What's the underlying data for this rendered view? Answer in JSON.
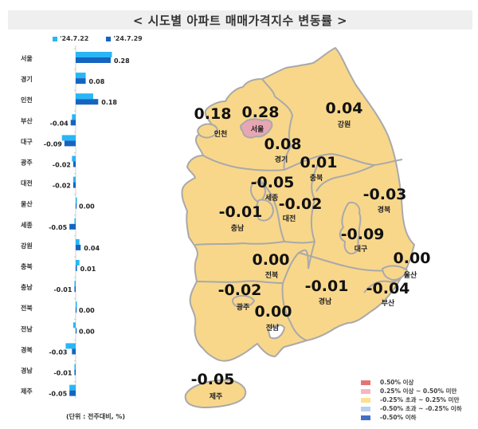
{
  "title": "< 시도별 아파트 매매가격지수 변동률 >",
  "unit_note": "(단위 : 전주대비, %)",
  "colors": {
    "prev_week": "#29b6f6",
    "this_week": "#1565c0",
    "map_base": "#f8d78b",
    "map_border": "#a9a9a9",
    "seoul_fill": "#e8a6b4"
  },
  "chart_data": {
    "type": "bar",
    "orientation": "horizontal",
    "title": "시도별 아파트 매매가격지수 변동률",
    "xlabel": "",
    "ylabel": "",
    "unit": "전주대비, %",
    "categories": [
      "서울",
      "경기",
      "인천",
      "부산",
      "대구",
      "광주",
      "대전",
      "울산",
      "세종",
      "강원",
      "충북",
      "충남",
      "전북",
      "전남",
      "경북",
      "경남",
      "제주"
    ],
    "series": [
      {
        "name": "'24.7.22",
        "color": "#29b6f6",
        "values": [
          0.29,
          0.08,
          0.14,
          -0.03,
          -0.11,
          -0.03,
          -0.02,
          0.01,
          -0.01,
          0.03,
          0.03,
          -0.01,
          0.01,
          -0.02,
          -0.08,
          -0.01,
          -0.05
        ]
      },
      {
        "name": "'24.7.29",
        "color": "#1565c0",
        "values": [
          0.28,
          0.08,
          0.18,
          -0.04,
          -0.09,
          -0.02,
          -0.02,
          0.0,
          -0.05,
          0.04,
          0.01,
          -0.01,
          0.0,
          0.0,
          -0.03,
          -0.01,
          -0.05
        ]
      }
    ],
    "data_labels": [
      "0.28",
      "0.08",
      "0.18",
      "-0.04",
      "-0.09",
      "-0.02",
      "-0.02",
      "0.00",
      "-0.05",
      "0.04",
      "0.01",
      "-0.01",
      "0.00",
      "0.00",
      "-0.03",
      "-0.01",
      "-0.05"
    ],
    "legend_position": "top",
    "grid": false
  },
  "legend_top": [
    {
      "label": "'24.7.22",
      "color": "#29b6f6"
    },
    {
      "label": "'24.7.29",
      "color": "#1565c0"
    }
  ],
  "map": {
    "regions": [
      {
        "name": "인천",
        "value": "0.18"
      },
      {
        "name": "서울",
        "value": "0.28"
      },
      {
        "name": "경기",
        "value": "0.08"
      },
      {
        "name": "강원",
        "value": "0.04"
      },
      {
        "name": "충북",
        "value": "0.01"
      },
      {
        "name": "세종",
        "value": "-0.05"
      },
      {
        "name": "대전",
        "value": "-0.02"
      },
      {
        "name": "충남",
        "value": "-0.01"
      },
      {
        "name": "경북",
        "value": "-0.03"
      },
      {
        "name": "대구",
        "value": "-0.09"
      },
      {
        "name": "전북",
        "value": "0.00"
      },
      {
        "name": "울산",
        "value": "0.00"
      },
      {
        "name": "광주",
        "value": "-0.02"
      },
      {
        "name": "경남",
        "value": "-0.01"
      },
      {
        "name": "부산",
        "value": "-0.04"
      },
      {
        "name": "전남",
        "value": "0.00"
      },
      {
        "name": "제주",
        "value": "-0.05"
      }
    ],
    "legend": [
      {
        "label": "0.50% 이상",
        "color": "#e57373"
      },
      {
        "label": "0.25% 이상 ~ 0.50% 미만",
        "color": "#f4b6c2"
      },
      {
        "label": "-0.25% 초과 ~ 0.25% 미만",
        "color": "#fbe08e"
      },
      {
        "label": "-0.50% 초과 ~ -0.25% 이하",
        "color": "#b7cfee"
      },
      {
        "label": "-0.50% 이하",
        "color": "#3f6fc8"
      }
    ]
  }
}
